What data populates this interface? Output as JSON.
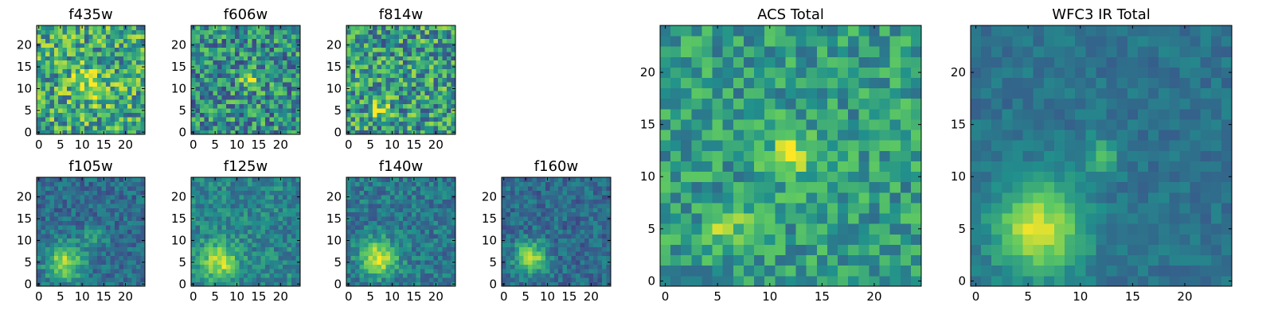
{
  "figure": {
    "colormap": [
      "#440154",
      "#3b528b",
      "#21918c",
      "#5ec962",
      "#fde725"
    ]
  },
  "chart_data": [
    {
      "type": "heatmap",
      "title": "f435w",
      "x_ticks": [
        0,
        5,
        10,
        15,
        20
      ],
      "y_ticks": [
        0,
        5,
        10,
        15,
        20
      ],
      "xlim": [
        0,
        25
      ],
      "ylim": [
        0,
        25
      ],
      "grid_size": 25,
      "peaks": [
        {
          "x": 12,
          "y": 11,
          "amp": 0.25,
          "sigma": 3
        }
      ],
      "noise": 0.32,
      "base": 0.6,
      "seed": 11
    },
    {
      "type": "heatmap",
      "title": "f606w",
      "x_ticks": [
        0,
        5,
        10,
        15,
        20
      ],
      "y_ticks": [
        0,
        5,
        10,
        15,
        20
      ],
      "xlim": [
        0,
        25
      ],
      "ylim": [
        0,
        25
      ],
      "grid_size": 25,
      "peaks": [
        {
          "x": 13,
          "y": 12,
          "amp": 0.4,
          "sigma": 1.5
        }
      ],
      "noise": 0.3,
      "base": 0.5,
      "seed": 23
    },
    {
      "type": "heatmap",
      "title": "f814w",
      "x_ticks": [
        0,
        5,
        10,
        15,
        20
      ],
      "y_ticks": [
        0,
        5,
        10,
        15,
        20
      ],
      "xlim": [
        0,
        25
      ],
      "ylim": [
        0,
        25
      ],
      "grid_size": 25,
      "peaks": [
        {
          "x": 7,
          "y": 5,
          "amp": 0.35,
          "sigma": 1.5
        }
      ],
      "noise": 0.32,
      "base": 0.55,
      "seed": 37
    },
    {
      "type": "heatmap",
      "title": "f105w",
      "x_ticks": [
        0,
        5,
        10,
        15,
        20
      ],
      "y_ticks": [
        0,
        5,
        10,
        15,
        20
      ],
      "xlim": [
        0,
        25
      ],
      "ylim": [
        0,
        25
      ],
      "grid_size": 25,
      "peaks": [
        {
          "x": 6,
          "y": 5,
          "amp": 0.5,
          "sigma": 3
        },
        {
          "x": 13,
          "y": 11,
          "amp": 0.2,
          "sigma": 2
        }
      ],
      "noise": 0.14,
      "base": 0.35,
      "seed": 41
    },
    {
      "type": "heatmap",
      "title": "f125w",
      "x_ticks": [
        0,
        5,
        10,
        15,
        20
      ],
      "y_ticks": [
        0,
        5,
        10,
        15,
        20
      ],
      "xlim": [
        0,
        25
      ],
      "ylim": [
        0,
        25
      ],
      "grid_size": 25,
      "peaks": [
        {
          "x": 6,
          "y": 5,
          "amp": 0.45,
          "sigma": 3
        }
      ],
      "noise": 0.15,
      "base": 0.45,
      "seed": 53
    },
    {
      "type": "heatmap",
      "title": "f140w",
      "x_ticks": [
        0,
        5,
        10,
        15,
        20
      ],
      "y_ticks": [
        0,
        5,
        10,
        15,
        20
      ],
      "xlim": [
        0,
        25
      ],
      "ylim": [
        0,
        25
      ],
      "grid_size": 25,
      "peaks": [
        {
          "x": 7,
          "y": 6,
          "amp": 0.5,
          "sigma": 3
        }
      ],
      "noise": 0.15,
      "base": 0.4,
      "seed": 67
    },
    {
      "type": "heatmap",
      "title": "f160w",
      "x_ticks": [
        0,
        5,
        10,
        15,
        20
      ],
      "y_ticks": [
        0,
        5,
        10,
        15,
        20
      ],
      "xlim": [
        0,
        25
      ],
      "ylim": [
        0,
        25
      ],
      "grid_size": 25,
      "peaks": [
        {
          "x": 6,
          "y": 6,
          "amp": 0.55,
          "sigma": 2.5
        }
      ],
      "noise": 0.14,
      "base": 0.35,
      "seed": 79
    },
    {
      "type": "heatmap",
      "title": "ACS Total",
      "x_ticks": [
        0,
        5,
        10,
        15,
        20
      ],
      "y_ticks": [
        0,
        5,
        10,
        15,
        20
      ],
      "xlim": [
        0,
        25
      ],
      "ylim": [
        0,
        25
      ],
      "grid_size": 25,
      "peaks": [
        {
          "x": 12,
          "y": 12,
          "amp": 0.4,
          "sigma": 1.5
        },
        {
          "x": 6,
          "y": 5,
          "amp": 0.25,
          "sigma": 1.5
        }
      ],
      "noise": 0.2,
      "base": 0.55,
      "seed": 97
    },
    {
      "type": "heatmap",
      "title": "WFC3 IR Total",
      "x_ticks": [
        0,
        5,
        10,
        15,
        20
      ],
      "y_ticks": [
        0,
        5,
        10,
        15,
        20
      ],
      "xlim": [
        0,
        25
      ],
      "ylim": [
        0,
        25
      ],
      "grid_size": 25,
      "peaks": [
        {
          "x": 6,
          "y": 5,
          "amp": 0.55,
          "sigma": 3
        },
        {
          "x": 12,
          "y": 12,
          "amp": 0.3,
          "sigma": 1.2
        }
      ],
      "noise": 0.08,
      "base": 0.38,
      "seed": 101
    }
  ]
}
